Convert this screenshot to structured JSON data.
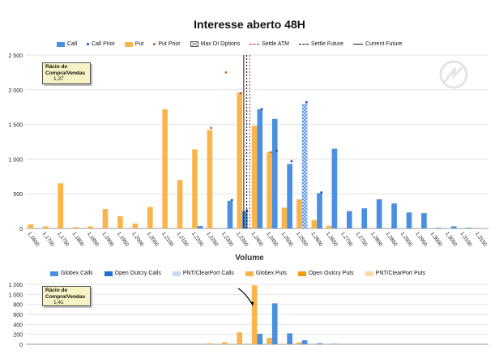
{
  "title": "Interesse aberto 48H",
  "legend_top": {
    "call": "Call",
    "call_prior": "Call Prior",
    "put": "Put",
    "put_prior": "Put Prior",
    "max_oi": "Max OI Options",
    "settle_atm": "Settle ATM",
    "settle_future": "Settle Future",
    "current_future": "Current Future"
  },
  "legend_bottom": {
    "globex_calls": "Globex Calls",
    "open_outcry_calls": "Open Outcry Calls",
    "pnt_calls": "PNT/ClearPort Calls",
    "globex_puts": "Globex Puts",
    "open_outcry_puts": "Open Outcry Puts",
    "pnt_puts": "PNT/ClearPort Puts"
  },
  "ratio_top": {
    "label": "Rácio de Compra/Vendas",
    "value": "1,37"
  },
  "ratio_bottom": {
    "label": "Rácio de Compra/Vendas",
    "value": "1,41"
  },
  "xlabel": "Volume",
  "colors": {
    "call": "#4a8fe0",
    "put": "#f9b54a",
    "call_dark": "#1f6fd6",
    "put_dark": "#f39c12",
    "pnt_call": "#c6d9f1",
    "pnt_put": "#fcd9a6"
  },
  "chart_data": [
    {
      "type": "bar",
      "title": "Interesse aberto 48H",
      "xlabel": "",
      "categories": [
        "1,1600",
        "1,1700",
        "1,1750",
        "1,1800",
        "1,1850",
        "1,1900",
        "1,1950",
        "1,2000",
        "1,2050",
        "1,2100",
        "1,2150",
        "1,2200",
        "1,2250",
        "1,2300",
        "1,2350",
        "1,2400",
        "1,2450",
        "1,2500",
        "1,2550",
        "1,2600",
        "1,2650",
        "1,2700",
        "1,2750",
        "1,2800",
        "1,2850",
        "1,2900",
        "1,2950",
        "1,3000",
        "1,3050",
        "1,3100",
        "1,3150"
      ],
      "ylim": [
        0,
        2500
      ],
      "yticks": [
        "0",
        "500",
        "1 000",
        "1 500",
        "2 000",
        "2 500"
      ],
      "series": [
        {
          "name": "Call",
          "values": [
            0,
            0,
            0,
            0,
            0,
            0,
            0,
            0,
            0,
            0,
            0,
            35,
            0,
            400,
            250,
            1720,
            1580,
            930,
            1800,
            510,
            1150,
            250,
            290,
            420,
            360,
            230,
            220,
            10,
            30,
            10,
            0
          ]
        },
        {
          "name": "Put",
          "values": [
            60,
            30,
            650,
            20,
            30,
            280,
            175,
            70,
            310,
            1720,
            700,
            1140,
            1420,
            0,
            1960,
            1480,
            1100,
            300,
            420,
            120,
            40,
            0,
            0,
            0,
            0,
            0,
            0,
            0,
            0,
            0,
            0
          ]
        },
        {
          "name": "Call Prior",
          "values": [
            null,
            null,
            null,
            null,
            null,
            null,
            null,
            null,
            null,
            null,
            null,
            null,
            null,
            410,
            260,
            1720,
            1120,
            970,
            1820,
            520,
            null,
            null,
            null,
            null,
            null,
            null,
            null,
            null,
            null,
            null,
            null
          ]
        },
        {
          "name": "Put Prior",
          "values": [
            null,
            null,
            null,
            null,
            null,
            null,
            null,
            null,
            null,
            null,
            null,
            null,
            1450,
            2250,
            1950,
            null,
            1100,
            null,
            null,
            null,
            null,
            null,
            null,
            null,
            null,
            null,
            null,
            null,
            null,
            null,
            null
          ]
        }
      ],
      "max_oi": [
        {
          "category": "1,2300",
          "series": "Put",
          "value": 2250
        },
        {
          "category": "1,2550",
          "series": "Call",
          "value": 1800
        }
      ],
      "settle_atm": 1.2375,
      "settle_future": 1.2365,
      "current_future": 1.2355
    },
    {
      "type": "bar",
      "categories": [
        "1,1600",
        "1,1700",
        "1,1750",
        "1,1800",
        "1,1850",
        "1,1900",
        "1,1950",
        "1,2000",
        "1,2050",
        "1,2100",
        "1,2150",
        "1,2200",
        "1,2250",
        "1,2300",
        "1,2350",
        "1,2400",
        "1,2450",
        "1,2500",
        "1,2550",
        "1,2600",
        "1,2650",
        "1,2700",
        "1,2750",
        "1,2800",
        "1,2850",
        "1,2900",
        "1,2950",
        "1,3000",
        "1,3050",
        "1,3100",
        "1,3150"
      ],
      "ylim": [
        0,
        1200
      ],
      "yticks": [
        "0",
        "200",
        "400",
        "600",
        "800",
        "1 000",
        "1 200"
      ],
      "series": [
        {
          "name": "Globex Calls",
          "values": [
            0,
            0,
            0,
            0,
            0,
            0,
            0,
            0,
            0,
            0,
            0,
            0,
            0,
            0,
            0,
            210,
            820,
            220,
            80,
            20,
            10,
            0,
            0,
            0,
            0,
            0,
            0,
            0,
            0,
            0,
            0
          ]
        },
        {
          "name": "Globex Puts",
          "values": [
            0,
            0,
            0,
            0,
            0,
            0,
            0,
            0,
            0,
            0,
            0,
            0,
            20,
            40,
            240,
            1180,
            130,
            10,
            40,
            0,
            0,
            0,
            0,
            0,
            0,
            0,
            0,
            0,
            0,
            0,
            0
          ]
        }
      ]
    }
  ]
}
